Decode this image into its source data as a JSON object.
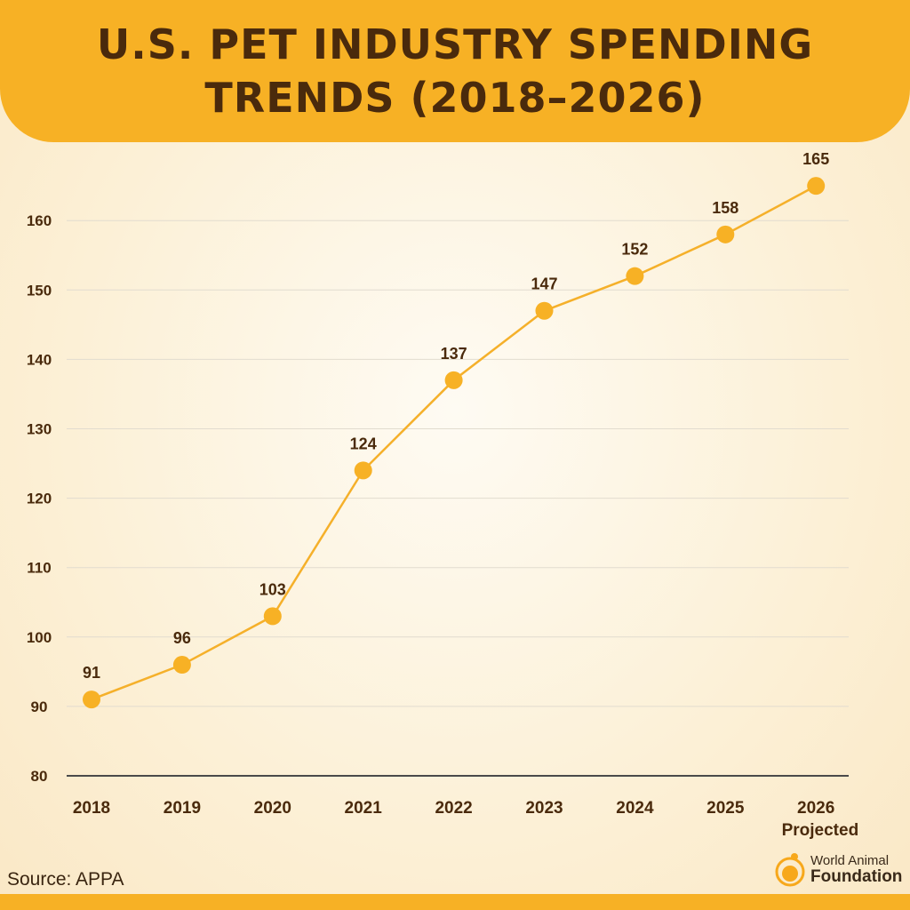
{
  "title": "U.S. PET INDUSTRY SPENDING TRENDS (2018–2026)",
  "source": "Source:  APPA",
  "logo": {
    "line1": "World Animal",
    "line2": "Foundation"
  },
  "colors": {
    "accent": "#f7b125",
    "line": "#f5b02a",
    "text": "#4a2a0c"
  },
  "chart_data": {
    "type": "line",
    "categories": [
      "2018",
      "2019",
      "2020",
      "2021",
      "2022",
      "2023",
      "2024",
      "2025",
      "2026"
    ],
    "category_sublabels": [
      "",
      "",
      "",
      "",
      "",
      "",
      "",
      "",
      "Projected"
    ],
    "values": [
      91,
      96,
      103,
      124,
      137,
      147,
      152,
      158,
      165
    ],
    "data_labels": [
      "91",
      "96",
      "103",
      "124",
      "137",
      "147",
      "152",
      "158",
      "165"
    ],
    "ylim": [
      80,
      165
    ],
    "yticks": [
      80,
      90,
      100,
      110,
      120,
      130,
      140,
      150,
      160
    ],
    "grid": true
  }
}
